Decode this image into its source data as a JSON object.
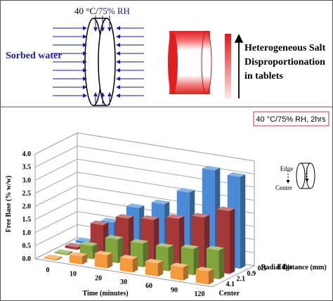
{
  "diagram": {
    "condition_temp": "40 °C/",
    "condition_rh": "75% RH",
    "sorbed_label": "Sorbed water",
    "salt_text": [
      "Heterogeneous Salt",
      "Disproportionation",
      "in tablets"
    ]
  },
  "chart_data": {
    "type": "bar3d",
    "annotation": "40 °C/75% RH, 2hrs",
    "y_label": "Free Base (% w/w)",
    "x_label": "Time (minutes)",
    "z_label": "Radial Distance (mm)",
    "z_end_labels": [
      "Edge",
      "Center"
    ],
    "inset_labels": [
      "Edge",
      "Center"
    ],
    "categories": [
      "0",
      "10",
      "20",
      "30",
      "60",
      "90",
      "120"
    ],
    "series": [
      {
        "name": "0.3",
        "color": "#4a8ad6",
        "values": [
          0.1,
          1.0,
          1.7,
          2.0,
          2.6,
          3.6,
          3.5
        ]
      },
      {
        "name": "0.9",
        "color": "#a83838",
        "values": [
          0.1,
          1.1,
          1.5,
          1.6,
          1.8,
          2.0,
          2.4
        ]
      },
      {
        "name": "2.1",
        "color": "#7fa53c",
        "values": [
          0.05,
          0.5,
          0.9,
          0.9,
          0.9,
          1.0,
          1.1
        ]
      },
      {
        "name": "4.1",
        "color": "#f59a3c",
        "values": [
          0.05,
          0.3,
          0.5,
          0.5,
          0.5,
          0.5,
          0.5
        ]
      }
    ],
    "ylim": [
      0,
      4
    ],
    "yticks": [
      {
        "value": 0,
        "label": "0.0"
      },
      0.5,
      {
        "value": 1,
        "label": "1.0"
      },
      1.5,
      {
        "value": 2,
        "label": "2.0"
      },
      2.5,
      {
        "value": 3,
        "label": "3.0"
      },
      3.5,
      {
        "value": 4,
        "label": "4.0"
      }
    ],
    "grid": true
  }
}
